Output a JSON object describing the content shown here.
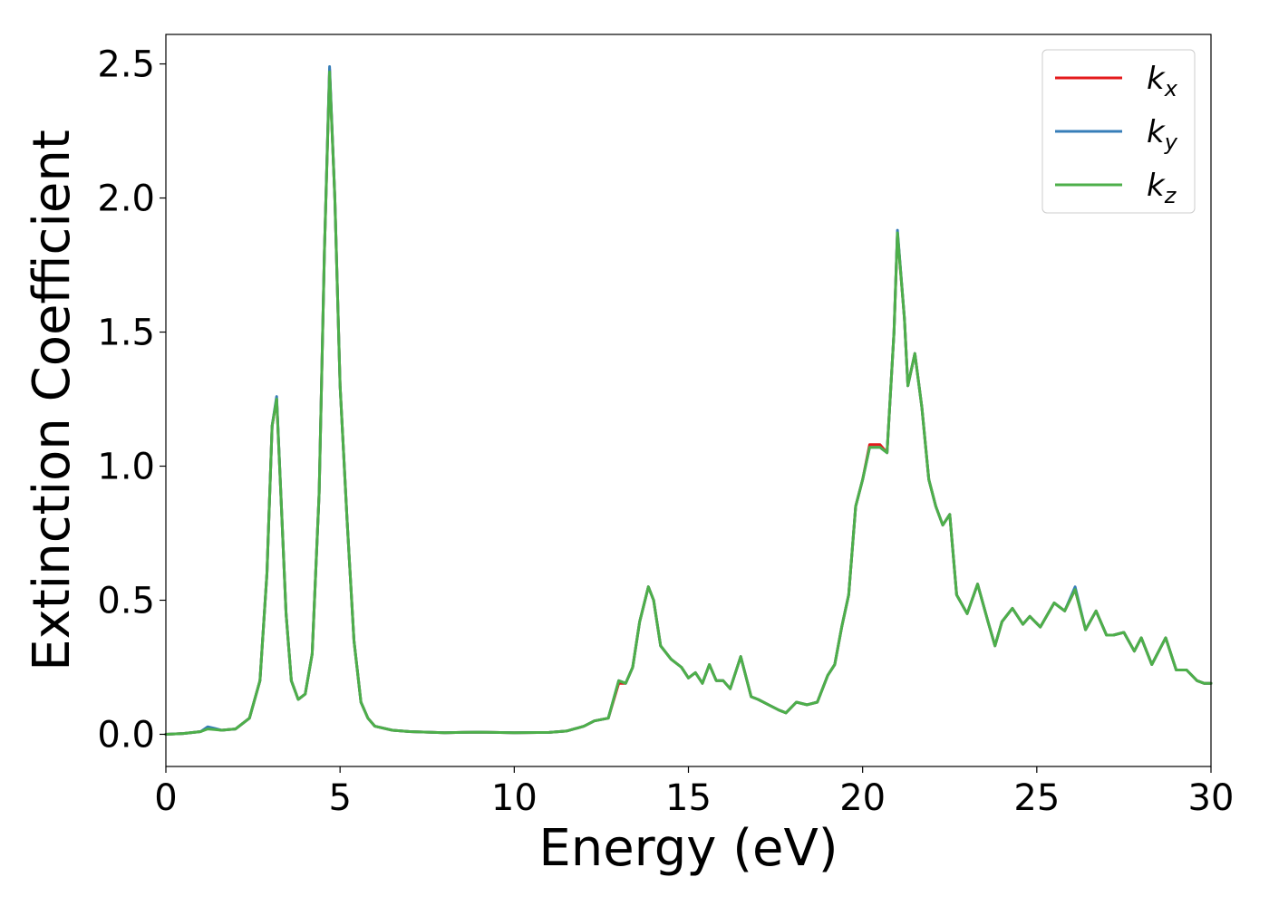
{
  "chart_data": {
    "type": "line",
    "title": "",
    "xlabel": "Energy (eV)",
    "ylabel": "Extinction Coefficient",
    "xlim": [
      0,
      30
    ],
    "ylim": [
      -0.12,
      2.61
    ],
    "xticks": [
      0,
      5,
      10,
      15,
      20,
      25,
      30
    ],
    "yticks": [
      0.0,
      0.5,
      1.0,
      1.5,
      2.0,
      2.5
    ],
    "xtick_labels": [
      "0",
      "5",
      "10",
      "15",
      "20",
      "25",
      "30"
    ],
    "ytick_labels": [
      "0.0",
      "0.5",
      "1.0",
      "1.5",
      "2.0",
      "2.5"
    ],
    "grid": false,
    "legend_position": "top-right",
    "x": [
      0,
      0.5,
      1.0,
      1.2,
      1.4,
      1.6,
      2.0,
      2.4,
      2.7,
      2.9,
      3.05,
      3.18,
      3.3,
      3.45,
      3.6,
      3.8,
      4.0,
      4.2,
      4.4,
      4.55,
      4.7,
      4.85,
      5.0,
      5.2,
      5.4,
      5.6,
      5.8,
      6.0,
      6.5,
      7.0,
      8.0,
      9.0,
      10.0,
      11.0,
      11.5,
      12.0,
      12.3,
      12.7,
      13.0,
      13.2,
      13.4,
      13.6,
      13.85,
      14.0,
      14.2,
      14.5,
      14.8,
      15.0,
      15.2,
      15.4,
      15.6,
      15.8,
      16.0,
      16.2,
      16.5,
      16.8,
      17.0,
      17.3,
      17.6,
      17.8,
      18.1,
      18.4,
      18.7,
      19.0,
      19.2,
      19.4,
      19.6,
      19.8,
      20.0,
      20.2,
      20.5,
      20.7,
      20.9,
      21.0,
      21.2,
      21.3,
      21.5,
      21.7,
      21.9,
      22.1,
      22.3,
      22.5,
      22.7,
      23.0,
      23.3,
      23.6,
      23.8,
      24.0,
      24.3,
      24.6,
      24.8,
      25.1,
      25.5,
      25.8,
      26.1,
      26.4,
      26.7,
      27.0,
      27.2,
      27.5,
      27.8,
      28.0,
      28.3,
      28.7,
      29.0,
      29.3,
      29.6,
      29.8,
      30.0
    ],
    "series": [
      {
        "name": "k_x",
        "color": "#e41a1c",
        "values": [
          0.0,
          0.003,
          0.01,
          0.025,
          0.02,
          0.015,
          0.02,
          0.06,
          0.2,
          0.6,
          1.15,
          1.25,
          0.9,
          0.45,
          0.2,
          0.13,
          0.15,
          0.3,
          0.9,
          1.8,
          2.48,
          2.0,
          1.3,
          0.8,
          0.35,
          0.12,
          0.06,
          0.03,
          0.015,
          0.01,
          0.006,
          0.008,
          0.006,
          0.007,
          0.012,
          0.03,
          0.05,
          0.06,
          0.19,
          0.19,
          0.25,
          0.42,
          0.55,
          0.5,
          0.33,
          0.28,
          0.25,
          0.21,
          0.23,
          0.19,
          0.26,
          0.2,
          0.2,
          0.17,
          0.29,
          0.14,
          0.13,
          0.11,
          0.09,
          0.08,
          0.12,
          0.11,
          0.12,
          0.22,
          0.26,
          0.4,
          0.52,
          0.85,
          0.95,
          1.08,
          1.08,
          1.05,
          1.5,
          1.87,
          1.55,
          1.3,
          1.42,
          1.22,
          0.95,
          0.85,
          0.78,
          0.82,
          0.52,
          0.45,
          0.56,
          0.42,
          0.33,
          0.42,
          0.47,
          0.41,
          0.44,
          0.4,
          0.49,
          0.46,
          0.54,
          0.39,
          0.46,
          0.37,
          0.37,
          0.38,
          0.31,
          0.36,
          0.26,
          0.36,
          0.24,
          0.24,
          0.2,
          0.19,
          0.19
        ]
      },
      {
        "name": "k_y",
        "color": "#377eb8",
        "values": [
          0.0,
          0.003,
          0.01,
          0.028,
          0.022,
          0.015,
          0.02,
          0.06,
          0.2,
          0.6,
          1.15,
          1.26,
          0.9,
          0.45,
          0.2,
          0.13,
          0.15,
          0.3,
          0.9,
          1.8,
          2.49,
          2.0,
          1.3,
          0.8,
          0.35,
          0.12,
          0.06,
          0.03,
          0.015,
          0.01,
          0.006,
          0.008,
          0.006,
          0.007,
          0.012,
          0.03,
          0.05,
          0.06,
          0.2,
          0.19,
          0.25,
          0.42,
          0.55,
          0.5,
          0.33,
          0.28,
          0.25,
          0.21,
          0.23,
          0.19,
          0.26,
          0.2,
          0.2,
          0.17,
          0.29,
          0.14,
          0.13,
          0.11,
          0.09,
          0.08,
          0.12,
          0.11,
          0.12,
          0.22,
          0.26,
          0.4,
          0.52,
          0.85,
          0.95,
          1.07,
          1.07,
          1.05,
          1.5,
          1.88,
          1.55,
          1.3,
          1.42,
          1.22,
          0.95,
          0.85,
          0.78,
          0.82,
          0.52,
          0.45,
          0.56,
          0.42,
          0.33,
          0.42,
          0.47,
          0.41,
          0.44,
          0.4,
          0.49,
          0.46,
          0.55,
          0.39,
          0.46,
          0.37,
          0.37,
          0.38,
          0.31,
          0.36,
          0.26,
          0.36,
          0.24,
          0.24,
          0.2,
          0.19,
          0.19
        ]
      },
      {
        "name": "k_z",
        "color": "#4daf4a",
        "values": [
          0.0,
          0.003,
          0.01,
          0.02,
          0.018,
          0.015,
          0.02,
          0.06,
          0.2,
          0.6,
          1.15,
          1.25,
          0.9,
          0.45,
          0.2,
          0.13,
          0.15,
          0.3,
          0.9,
          1.8,
          2.47,
          2.0,
          1.3,
          0.8,
          0.35,
          0.12,
          0.06,
          0.03,
          0.015,
          0.01,
          0.006,
          0.008,
          0.006,
          0.007,
          0.012,
          0.03,
          0.05,
          0.06,
          0.2,
          0.19,
          0.25,
          0.42,
          0.55,
          0.5,
          0.33,
          0.28,
          0.25,
          0.21,
          0.23,
          0.19,
          0.26,
          0.2,
          0.2,
          0.17,
          0.29,
          0.14,
          0.13,
          0.11,
          0.09,
          0.08,
          0.12,
          0.11,
          0.12,
          0.22,
          0.26,
          0.4,
          0.52,
          0.85,
          0.95,
          1.07,
          1.07,
          1.05,
          1.5,
          1.87,
          1.55,
          1.3,
          1.42,
          1.22,
          0.95,
          0.85,
          0.78,
          0.82,
          0.52,
          0.45,
          0.56,
          0.42,
          0.33,
          0.42,
          0.47,
          0.41,
          0.44,
          0.4,
          0.49,
          0.46,
          0.54,
          0.39,
          0.46,
          0.37,
          0.37,
          0.38,
          0.31,
          0.36,
          0.26,
          0.36,
          0.24,
          0.24,
          0.2,
          0.19,
          0.19
        ]
      }
    ],
    "legend": [
      {
        "base": "k",
        "sub": "x",
        "color": "#e41a1c"
      },
      {
        "base": "k",
        "sub": "y",
        "color": "#377eb8"
      },
      {
        "base": "k",
        "sub": "z",
        "color": "#4daf4a"
      }
    ]
  }
}
